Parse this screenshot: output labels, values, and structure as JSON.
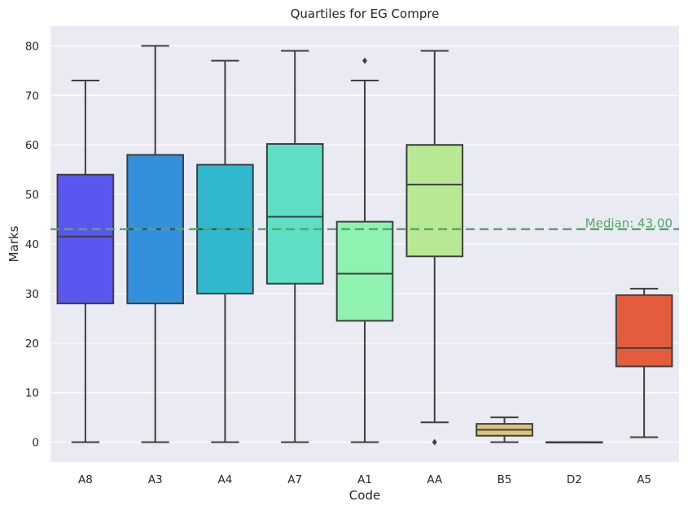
{
  "chart_data": {
    "type": "box",
    "title": "Quartiles for EG Compre",
    "xlabel": "Code",
    "ylabel": "Marks",
    "ylim": [
      -4,
      84
    ],
    "yticks": [
      0,
      10,
      20,
      30,
      40,
      50,
      60,
      70,
      80
    ],
    "grid": true,
    "categories": [
      "A8",
      "A3",
      "A4",
      "A7",
      "A1",
      "AA",
      "B5",
      "D2",
      "A5"
    ],
    "boxes": [
      {
        "label": "A8",
        "whisker_low": 0,
        "q1": 28,
        "median": 41.5,
        "q3": 54,
        "whisker_high": 73,
        "outliers": [],
        "color": "#5a56f0"
      },
      {
        "label": "A3",
        "whisker_low": 0,
        "q1": 28,
        "median": 43,
        "q3": 58,
        "whisker_high": 80,
        "outliers": [],
        "color": "#3390dc"
      },
      {
        "label": "A4",
        "whisker_low": 0,
        "q1": 30,
        "median": 43,
        "q3": 56,
        "whisker_high": 77,
        "outliers": [],
        "color": "#30b8cf"
      },
      {
        "label": "A7",
        "whisker_low": 0,
        "q1": 32,
        "median": 45.5,
        "q3": 60.2,
        "whisker_high": 79,
        "outliers": [],
        "color": "#5edfc5"
      },
      {
        "label": "A1",
        "whisker_low": 0,
        "q1": 24.5,
        "median": 34,
        "q3": 44.5,
        "whisker_high": 73,
        "outliers": [
          77
        ],
        "color": "#8ff2b1"
      },
      {
        "label": "AA",
        "whisker_low": 4,
        "q1": 37.5,
        "median": 52,
        "q3": 60,
        "whisker_high": 79,
        "outliers": [
          0
        ],
        "color": "#b7e994"
      },
      {
        "label": "B5",
        "whisker_low": 0,
        "q1": 1.3,
        "median": 2.5,
        "q3": 3.7,
        "whisker_high": 5,
        "outliers": [],
        "color": "#dcc47e"
      },
      {
        "label": "D2",
        "whisker_low": 0,
        "q1": 0,
        "median": 0,
        "q3": 0,
        "whisker_high": 0,
        "outliers": [],
        "color": "#e89a6a"
      },
      {
        "label": "A5",
        "whisker_low": 1,
        "q1": 15.3,
        "median": 19,
        "q3": 29.7,
        "whisker_high": 31,
        "outliers": [],
        "color": "#e35c3c"
      }
    ],
    "reference_line": {
      "value": 43.0,
      "label": "Median: 43.00",
      "color": "#55a868",
      "style": "dashed"
    },
    "background_color": "#eaeaf2",
    "grid_color": "#ffffff",
    "line_color": "#3f3f3f"
  }
}
